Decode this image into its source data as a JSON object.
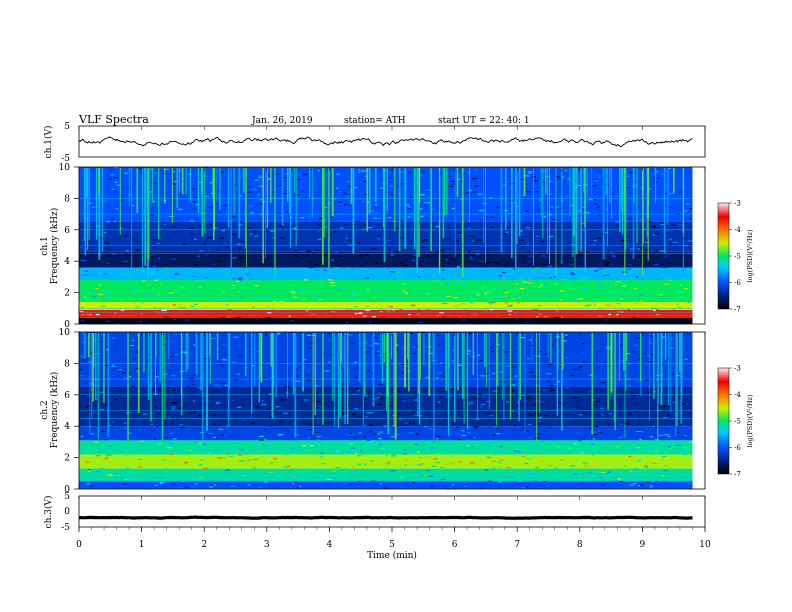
{
  "header": {
    "title": "VLF  Spectra",
    "date": "Jan. 26, 2019",
    "station": "station= ATH",
    "start_ut": "start  UT  =   22: 40: 1"
  },
  "chart_data": [
    {
      "type": "line",
      "panel": "ch1-waveform",
      "ylabel": "ch.1(V)",
      "ylim": [
        -5,
        5
      ],
      "y_ticks": [
        "5",
        "-5"
      ],
      "xlim": [
        0,
        10
      ],
      "description_level": "signal oscillates around 0 V with amplitude ~0.5 V",
      "series": [
        {
          "x_range": [
            0,
            9.8
          ],
          "mean": 0.0,
          "amplitude": 0.5
        }
      ]
    },
    {
      "type": "heatmap",
      "panel": "ch1-spectrogram",
      "ylabel_line1": "ch.1",
      "ylabel_line2": "Frequency  (kHz)",
      "ylim": [
        0,
        10
      ],
      "y_ticks": [
        "0",
        "2",
        "4",
        "6",
        "8",
        "10"
      ],
      "xlim": [
        0,
        10
      ],
      "x_data_end": 9.8,
      "colorbar": {
        "label": "log(PSD)(V²/Hz)",
        "range": [
          -7,
          -3
        ],
        "ticks": [
          "-3",
          "-4",
          "-5",
          "-6",
          "-7"
        ]
      },
      "bands_khz": [
        {
          "from": 0.0,
          "to": 0.4,
          "level": -6.9
        },
        {
          "from": 0.4,
          "to": 0.9,
          "level": -3.6
        },
        {
          "from": 0.9,
          "to": 1.4,
          "level": -4.5
        },
        {
          "from": 1.4,
          "to": 2.8,
          "level": -5.0
        },
        {
          "from": 2.8,
          "to": 3.6,
          "level": -5.6
        },
        {
          "from": 3.6,
          "to": 4.6,
          "level": -6.6
        },
        {
          "from": 4.6,
          "to": 6.5,
          "level": -6.3
        },
        {
          "from": 6.5,
          "to": 10.0,
          "level": -6.0
        }
      ]
    },
    {
      "type": "heatmap",
      "panel": "ch2-spectrogram",
      "ylabel_line1": "ch.2",
      "ylabel_line2": "Frequency  (kHz)",
      "ylim": [
        0,
        10
      ],
      "y_ticks": [
        "0",
        "2",
        "4",
        "6",
        "8",
        "10"
      ],
      "xlim": [
        0,
        10
      ],
      "x_data_end": 9.8,
      "colorbar": {
        "label": "log(PSD)(V²/Hz)",
        "range": [
          -7,
          -3
        ],
        "ticks": [
          "-3",
          "-4",
          "-5",
          "-6",
          "-7"
        ]
      },
      "bands_khz": [
        {
          "from": 0.0,
          "to": 0.5,
          "level": -6.0
        },
        {
          "from": 0.5,
          "to": 1.3,
          "level": -5.2
        },
        {
          "from": 1.3,
          "to": 2.2,
          "level": -4.6
        },
        {
          "from": 2.2,
          "to": 3.1,
          "level": -5.2
        },
        {
          "from": 3.1,
          "to": 4.0,
          "level": -6.1
        },
        {
          "from": 4.0,
          "to": 6.5,
          "level": -6.4
        },
        {
          "from": 6.5,
          "to": 10.0,
          "level": -6.1
        }
      ]
    },
    {
      "type": "line",
      "panel": "ch3-waveform",
      "ylabel": "ch.3(V)",
      "ylim": [
        -5,
        5
      ],
      "y_ticks": [
        "5",
        "0",
        "-5"
      ],
      "xlim": [
        0,
        10
      ],
      "series": [
        {
          "x_range": [
            0,
            9.8
          ],
          "mean": -2.0,
          "amplitude": 0.15
        }
      ]
    }
  ],
  "x_axis": {
    "label": "Time  (min)",
    "ticks": [
      "0",
      "1",
      "2",
      "3",
      "4",
      "5",
      "6",
      "7",
      "8",
      "9",
      "10"
    ]
  },
  "colors": {
    "psd_-7": "#000000",
    "psd_-6.5": "#00207a",
    "psd_-6": "#0050ff",
    "psd_-5.5": "#00d0ff",
    "psd_-5": "#00e860",
    "psd_-4.5": "#c8f000",
    "psd_-4": "#ff7000",
    "psd_-3.5": "#f00000",
    "psd_-3": "#ffe8e8"
  }
}
